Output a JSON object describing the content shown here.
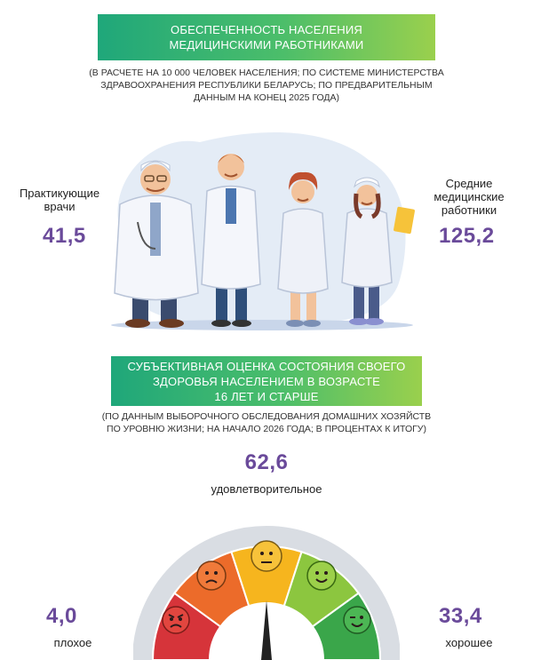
{
  "section1": {
    "title_lines": [
      "ОБЕСПЕЧЕННОСТЬ НАСЕЛЕНИЯ",
      "МЕДИЦИНСКИМИ РАБОТНИКАМИ"
    ],
    "note_lines": [
      "(В РАСЧЕТЕ НА 10 000 ЧЕЛОВЕК НАСЕЛЕНИЯ; ПО СИСТЕМЕ МИНИСТЕРСТВА",
      "ЗДРАВООХРАНЕНИЯ РЕСПУБЛИКИ БЕЛАРУСЬ; ПО ПРЕДВАРИТЕЛЬНЫМ",
      "ДАННЫМ НА КОНЕЦ 2025 ГОДА)"
    ],
    "doctors": {
      "label_lines": [
        "Практикующие",
        "врачи"
      ],
      "value": "41,5"
    },
    "nurses": {
      "label_lines": [
        "Средние",
        "медицинские",
        "работники"
      ],
      "value": "125,2"
    }
  },
  "section2": {
    "title_lines": [
      "СУБЪЕКТИВНАЯ ОЦЕНКА СОСТОЯНИЯ СВОЕГО",
      "ЗДОРОВЬЯ НАСЕЛЕНИЕМ В ВОЗРАСТЕ",
      "16 ЛЕТ И СТАРШЕ"
    ],
    "note_lines": [
      "(ПО ДАННЫМ ВЫБОРОЧНОГО ОБСЛЕДОВАНИЯ ДОМАШНИХ ХОЗЯЙСТВ",
      "ПО УРОВНЮ ЖИЗНИ; НА НАЧАЛО 2026 ГОДА; В ПРОЦЕНТАХ К ИТОГУ)"
    ],
    "satisfactory": {
      "value": "62,6",
      "label": "удовлетворительное"
    },
    "bad": {
      "value": "4,0",
      "label": "плохое"
    },
    "good": {
      "value": "33,4",
      "label": "хорошее"
    }
  },
  "colors": {
    "accent_value": "#6a4a9a",
    "banner_start": "#1fa77a",
    "banner_end": "#9ad04d",
    "gauge_red": "#d6343a",
    "gauge_orange": "#ec6b2a",
    "gauge_yellow": "#f6b51e",
    "gauge_lightgreen": "#8cc63f",
    "gauge_green": "#3aa64a"
  },
  "icons": [
    "doctor-figure",
    "angry-face-icon",
    "sad-face-icon",
    "neutral-face-icon",
    "smile-face-icon",
    "wink-face-icon",
    "gauge-needle"
  ]
}
